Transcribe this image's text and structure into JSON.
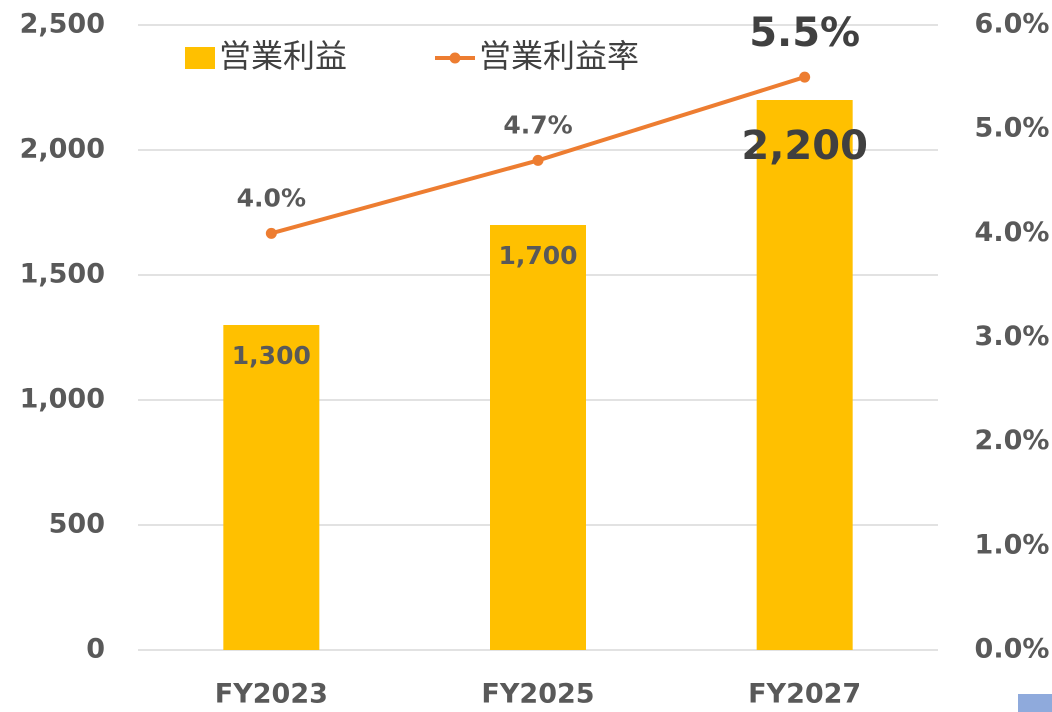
{
  "chart_data": {
    "type": "bar_line",
    "categories": [
      "FY2023",
      "FY2025",
      "FY2027"
    ],
    "series": [
      {
        "name": "営業利益",
        "color": "#FFC000",
        "values": [
          1300,
          1700,
          2200
        ],
        "value_labels": [
          "1,300",
          "1,700",
          "2,200"
        ]
      },
      {
        "name": "営業利益率",
        "color": "#ED7D31",
        "axis": "y2",
        "values": [
          4.0,
          4.7,
          5.5
        ],
        "value_labels": [
          "4.0%",
          "4.7%",
          "5.5%"
        ]
      }
    ],
    "ylim": [
      0,
      2500
    ],
    "yticks": [
      0,
      500,
      {
        "value": 1000,
        "label": "1,000"
      },
      {
        "value": 1500,
        "label": "1,500"
      },
      {
        "value": 2000,
        "label": "2,000"
      },
      {
        "value": 2500,
        "label": "2,500"
      }
    ],
    "y2lim": [
      0,
      6
    ],
    "y2ticks": [
      {
        "value": 0,
        "label": "0.0%"
      },
      {
        "value": 1,
        "label": "1.0%"
      },
      {
        "value": 2,
        "label": "2.0%"
      },
      {
        "value": 3,
        "label": "3.0%"
      },
      {
        "value": 4,
        "label": "4.0%"
      },
      {
        "value": 5,
        "label": "5.0%"
      },
      {
        "value": 6,
        "label": "6.0%"
      }
    ],
    "grid": true,
    "legend": "top-left"
  }
}
